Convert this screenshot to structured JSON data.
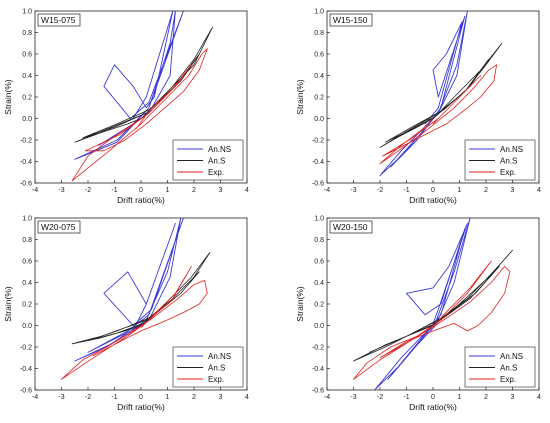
{
  "chart_data": [
    {
      "type": "line",
      "title": "W15-075",
      "xlabel": "Drift ratio(%)",
      "ylabel": "Strain(%)",
      "xlim": [
        -4,
        4
      ],
      "ylim": [
        -0.6,
        1.0
      ],
      "xticks": [
        "-4",
        "-3",
        "-2",
        "-1",
        "0",
        "1",
        "2",
        "3",
        "4"
      ],
      "yticks": [
        "-0.6",
        "-0.4",
        "-0.2",
        "0.0",
        "0.2",
        "0.4",
        "0.6",
        "0.8",
        "1.0"
      ],
      "grid": false,
      "legend_position": "bottom-right",
      "series": [
        {
          "name": "An.NS",
          "color": "#3a3ad8",
          "x": [
            0,
            -0.3,
            -0.9,
            -2.5,
            -0.9,
            0.3,
            1.1,
            1.3,
            1.1,
            0.3,
            -0.3,
            -0.9,
            -1.6,
            -0.3,
            0.3,
            1.6,
            0.3,
            -0.4,
            -1.4,
            -1.0,
            -0.3,
            0.2,
            0.5,
            1.2,
            0.2,
            -0.3
          ],
          "y": [
            0,
            -0.05,
            -0.2,
            -0.38,
            -0.22,
            0.1,
            0.7,
            1.0,
            0.4,
            0.05,
            -0.05,
            -0.15,
            -0.25,
            -0.05,
            0.1,
            1.0,
            0.15,
            0.0,
            0.3,
            0.5,
            0.3,
            0.1,
            0.2,
            1.0,
            0.2,
            0.0
          ]
        },
        {
          "name": "An.S",
          "color": "#222222",
          "x": [
            0,
            -0.5,
            -1.5,
            -2.5,
            -1.5,
            0.2,
            1.2,
            2.0,
            2.7,
            2.0,
            1.0,
            0.2,
            -1.0,
            -2.2,
            -1.0,
            0.3,
            1.5,
            2.2,
            1.3,
            0.0
          ],
          "y": [
            0,
            -0.05,
            -0.13,
            -0.22,
            -0.12,
            0.05,
            0.3,
            0.55,
            0.85,
            0.5,
            0.25,
            0.05,
            -0.08,
            -0.18,
            -0.06,
            0.08,
            0.35,
            0.6,
            0.3,
            0.0
          ]
        },
        {
          "name": "Exp.",
          "color": "#e02020",
          "x": [
            0,
            -0.3,
            -1.2,
            -2.0,
            -2.6,
            -1.2,
            0,
            1.0,
            1.8,
            2.3,
            2.5,
            2.2,
            1.6,
            0.9,
            0.2,
            -0.6,
            -1.4,
            -2.1,
            -0.8,
            0.3,
            1.1,
            1.9,
            1.3,
            0.4,
            0.1,
            -0.2
          ],
          "y": [
            0,
            -0.05,
            -0.2,
            -0.35,
            -0.58,
            -0.3,
            -0.05,
            0.2,
            0.4,
            0.6,
            0.65,
            0.45,
            0.25,
            0.1,
            -0.05,
            -0.2,
            -0.3,
            -0.3,
            -0.15,
            0.05,
            0.25,
            0.5,
            0.3,
            0.1,
            0.0,
            -0.1
          ]
        }
      ]
    },
    {
      "type": "line",
      "title": "W15-150",
      "xlabel": "Drift ratio(%)",
      "ylabel": "Strain(%)",
      "xlim": [
        -4,
        4
      ],
      "ylim": [
        -0.6,
        1.0
      ],
      "xticks": [
        "-4",
        "-3",
        "-2",
        "-1",
        "0",
        "1",
        "2",
        "3",
        "4"
      ],
      "yticks": [
        "-0.6",
        "-0.4",
        "-0.2",
        "0.0",
        "0.2",
        "0.4",
        "0.6",
        "0.8",
        "1.0"
      ],
      "grid": false,
      "legend_position": "bottom-right",
      "series": [
        {
          "name": "An.NS",
          "color": "#3a3ad8",
          "x": [
            0,
            -0.4,
            -1.2,
            -2.0,
            -1.2,
            0.2,
            0.9,
            1.3,
            0.9,
            0.2,
            -0.5,
            -1.6,
            -0.6,
            0.3,
            1.2,
            0.2,
            0.0,
            0.5,
            1.1,
            0.2,
            -0.3
          ],
          "y": [
            0,
            -0.1,
            -0.3,
            -0.53,
            -0.35,
            0.05,
            0.5,
            1.0,
            0.4,
            0.05,
            -0.15,
            -0.45,
            -0.2,
            0.1,
            0.95,
            0.2,
            0.45,
            0.6,
            0.9,
            0.1,
            -0.05
          ]
        },
        {
          "name": "An.S",
          "color": "#222222",
          "x": [
            0,
            -0.6,
            -1.3,
            -2.0,
            -1.2,
            0.2,
            1.2,
            2.0,
            2.6,
            1.8,
            0.8,
            0.1,
            -0.8,
            -1.8,
            -0.8,
            0.4,
            1.4,
            2.1,
            1.2,
            0.0
          ],
          "y": [
            0,
            -0.08,
            -0.17,
            -0.27,
            -0.15,
            0.05,
            0.25,
            0.5,
            0.7,
            0.45,
            0.2,
            0.02,
            -0.1,
            -0.22,
            -0.08,
            0.08,
            0.3,
            0.55,
            0.25,
            0.0
          ]
        },
        {
          "name": "Exp.",
          "color": "#e02020",
          "x": [
            0,
            -0.4,
            -1.2,
            -2.0,
            -1.3,
            -0.2,
            0.8,
            1.6,
            2.1,
            2.4,
            2.3,
            1.8,
            1.2,
            0.5,
            -0.3,
            -1.1,
            -1.9,
            -0.9,
            0.2,
            1.0,
            1.8,
            1.2,
            0.4,
            0.0
          ],
          "y": [
            0,
            -0.1,
            -0.25,
            -0.42,
            -0.3,
            -0.1,
            0.1,
            0.3,
            0.45,
            0.5,
            0.35,
            0.2,
            0.08,
            -0.05,
            -0.15,
            -0.25,
            -0.35,
            -0.2,
            0.0,
            0.2,
            0.4,
            0.25,
            0.05,
            -0.05
          ]
        }
      ]
    },
    {
      "type": "line",
      "title": "W20-075",
      "xlabel": "Drift ratio(%)",
      "ylabel": "Strain(%)",
      "xlim": [
        -4,
        4
      ],
      "ylim": [
        -0.6,
        1.0
      ],
      "xticks": [
        "-4",
        "-3",
        "-2",
        "-1",
        "0",
        "1",
        "2",
        "3",
        "4"
      ],
      "yticks": [
        "-0.6",
        "-0.4",
        "-0.2",
        "0.0",
        "0.2",
        "0.4",
        "0.6",
        "0.8",
        "1.0"
      ],
      "grid": false,
      "legend_position": "bottom-right",
      "series": [
        {
          "name": "An.NS",
          "color": "#3a3ad8",
          "x": [
            0,
            -0.5,
            -1.2,
            -2.5,
            -1.3,
            0.2,
            1.0,
            1.5,
            1.1,
            0.3,
            -0.4,
            -1.2,
            -2.0,
            -0.5,
            0.3,
            1.6,
            0.4,
            -0.3,
            -1.4,
            -0.5,
            0.2,
            1.3,
            0.2,
            -0.2
          ],
          "y": [
            0,
            -0.08,
            -0.18,
            -0.33,
            -0.2,
            0.05,
            0.5,
            1.0,
            0.45,
            0.05,
            -0.05,
            -0.15,
            -0.25,
            -0.05,
            0.1,
            1.0,
            0.15,
            0.0,
            0.3,
            0.5,
            0.2,
            0.95,
            0.2,
            0.0
          ]
        },
        {
          "name": "An.S",
          "color": "#222222",
          "x": [
            0,
            -0.6,
            -1.6,
            -2.6,
            -1.5,
            0.2,
            1.2,
            2.0,
            2.6,
            1.9,
            0.9,
            0.2,
            -0.9,
            -2.0,
            -0.9,
            0.4,
            1.5,
            2.2,
            1.2,
            0.0
          ],
          "y": [
            0,
            -0.05,
            -0.12,
            -0.17,
            -0.1,
            0.05,
            0.25,
            0.45,
            0.68,
            0.45,
            0.2,
            0.03,
            -0.07,
            -0.14,
            -0.05,
            0.08,
            0.3,
            0.5,
            0.25,
            0.0
          ]
        },
        {
          "name": "Exp.",
          "color": "#e02020",
          "x": [
            0,
            -0.5,
            -1.3,
            -2.2,
            -3.0,
            -1.8,
            -0.4,
            0.6,
            1.4,
            2.0,
            2.4,
            2.5,
            2.2,
            1.6,
            0.8,
            0.0,
            -0.8,
            -1.8,
            -0.8,
            0.3,
            1.2,
            1.9,
            1.3,
            0.4,
            0.0
          ],
          "y": [
            0,
            -0.08,
            -0.2,
            -0.32,
            -0.5,
            -0.3,
            -0.08,
            0.1,
            0.25,
            0.38,
            0.42,
            0.3,
            0.2,
            0.12,
            0.03,
            -0.05,
            -0.15,
            -0.28,
            -0.15,
            0.05,
            0.25,
            0.55,
            0.3,
            0.08,
            -0.02
          ]
        }
      ]
    },
    {
      "type": "line",
      "title": "W20-150",
      "xlabel": "Drift ratio(%)",
      "ylabel": "Strain(%)",
      "xlim": [
        -4,
        4
      ],
      "ylim": [
        -0.6,
        1.0
      ],
      "xticks": [
        "-4",
        "-3",
        "-2",
        "-1",
        "0",
        "1",
        "2",
        "3",
        "4"
      ],
      "yticks": [
        "-0.6",
        "-0.4",
        "-0.2",
        "0.0",
        "0.2",
        "0.4",
        "0.6",
        "0.8",
        "1.0"
      ],
      "grid": false,
      "legend_position": "bottom-right",
      "series": [
        {
          "name": "An.NS",
          "color": "#3a3ad8",
          "x": [
            0,
            -0.5,
            -1.2,
            -2.2,
            -1.3,
            0.1,
            0.8,
            1.4,
            0.8,
            0.1,
            -0.6,
            -1.7,
            -0.7,
            0.3,
            1.2,
            0.3,
            -0.3,
            -1.0,
            0.0,
            0.6,
            1.3,
            0.2,
            -0.1
          ],
          "y": [
            0,
            -0.12,
            -0.3,
            -0.6,
            -0.38,
            0.03,
            0.5,
            1.0,
            0.4,
            0.0,
            -0.18,
            -0.5,
            -0.2,
            0.1,
            0.9,
            0.2,
            0.1,
            0.3,
            0.35,
            0.55,
            0.95,
            0.15,
            -0.05
          ]
        },
        {
          "name": "An.S",
          "color": "#222222",
          "x": [
            0,
            -0.8,
            -1.8,
            -3.0,
            -1.8,
            0.2,
            1.3,
            2.2,
            3.0,
            2.1,
            1.0,
            0.1,
            -1.0,
            -2.4,
            -1.0,
            0.4,
            1.6,
            2.5,
            1.4,
            0.0
          ],
          "y": [
            0,
            -0.08,
            -0.18,
            -0.33,
            -0.2,
            0.05,
            0.25,
            0.48,
            0.7,
            0.45,
            0.2,
            0.02,
            -0.1,
            -0.25,
            -0.1,
            0.08,
            0.3,
            0.55,
            0.25,
            0.0
          ]
        },
        {
          "name": "Exp.",
          "color": "#e02020",
          "x": [
            0,
            -0.6,
            -1.6,
            -2.5,
            -3.0,
            -2.0,
            -0.7,
            0.4,
            1.4,
            2.2,
            2.7,
            2.9,
            2.7,
            2.2,
            1.7,
            1.3,
            0.8,
            0.0,
            -1.0,
            -2.0,
            -0.9,
            0.3,
            1.3,
            2.2,
            1.4,
            0.4,
            0.0
          ],
          "y": [
            0,
            -0.1,
            -0.2,
            -0.35,
            -0.5,
            -0.32,
            -0.12,
            0.05,
            0.22,
            0.4,
            0.55,
            0.5,
            0.3,
            0.12,
            0.0,
            -0.05,
            0.02,
            -0.05,
            -0.15,
            -0.3,
            -0.15,
            0.05,
            0.3,
            0.6,
            0.35,
            0.1,
            -0.02
          ]
        }
      ]
    }
  ]
}
